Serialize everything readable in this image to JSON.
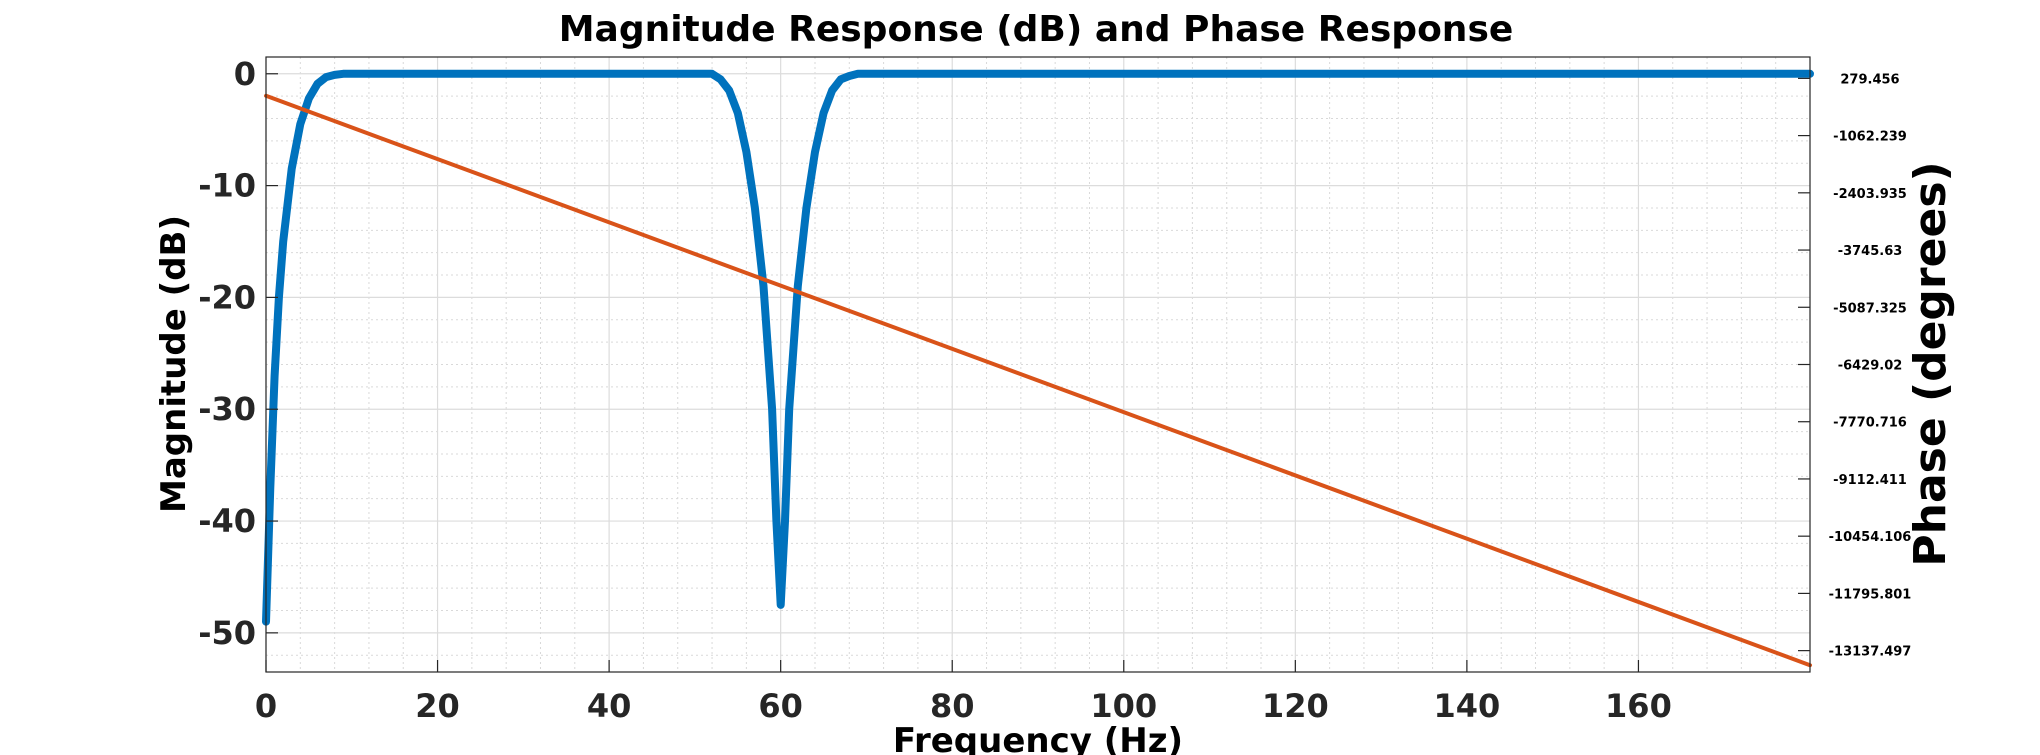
{
  "chart_data": {
    "type": "line",
    "title": "Magnitude Response (dB) and Phase Response",
    "xlabel": "Frequency (Hz)",
    "ylabel": "Magnitude (dB)",
    "y2label": "Phase (degrees)",
    "xlim": [
      0,
      180
    ],
    "ylim": [
      -53.5,
      1.5
    ],
    "y2lim": [
      -13638.6,
      780.5
    ],
    "x_ticks": [
      0,
      20,
      40,
      60,
      80,
      100,
      120,
      140,
      160
    ],
    "y_ticks": [
      0,
      -10,
      -20,
      -30,
      -40,
      -50
    ],
    "y2_ticks": [
      "279.456",
      "-1062.239",
      "-2403.935",
      "-3745.63",
      "-5087.325",
      "-6429.02",
      "-7770.716",
      "-9112.411",
      "-10454.106",
      "-11795.801",
      "-13137.497"
    ],
    "grid": true,
    "minor_grid": true,
    "series": [
      {
        "axis": "left",
        "color": "#0072BD",
        "x": [
          0,
          0.5,
          1,
          1.5,
          2,
          3,
          4,
          5,
          6,
          7,
          8,
          9,
          10,
          20,
          30,
          40,
          50,
          52,
          53,
          54,
          55,
          56,
          57,
          58,
          59,
          59.5,
          60,
          60.5,
          61,
          62,
          63,
          64,
          65,
          66,
          67,
          68,
          69,
          70,
          80,
          100,
          120,
          140,
          160,
          180
        ],
        "y": [
          -49,
          -37,
          -27,
          -20,
          -15,
          -8.5,
          -4.5,
          -2.2,
          -0.9,
          -0.3,
          -0.1,
          0,
          0,
          0,
          0,
          0,
          0,
          0,
          -0.5,
          -1.5,
          -3.5,
          -7,
          -12,
          -19,
          -30,
          -40,
          -47.5,
          -40,
          -30,
          -19,
          -12,
          -7,
          -3.5,
          -1.5,
          -0.5,
          -0.2,
          0,
          0,
          0,
          0,
          0,
          0,
          0,
          0
        ]
      },
      {
        "axis": "right",
        "color": "#D95319",
        "x": [
          0,
          180
        ],
        "y": [
          -130,
          -13480
        ]
      }
    ]
  }
}
